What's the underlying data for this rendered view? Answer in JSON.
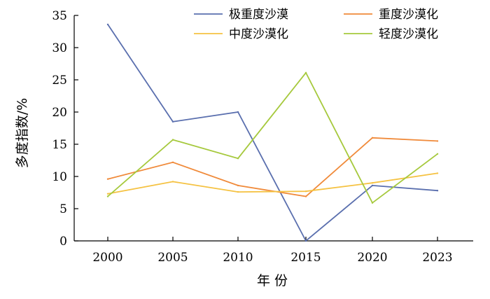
{
  "chart_data": {
    "type": "line",
    "title": "",
    "xlabel": "年 份",
    "ylabel": "多度指数/%",
    "categories": [
      "2000",
      "2005",
      "2010",
      "2015",
      "2020",
      "2023"
    ],
    "x": [
      2000,
      2005,
      2010,
      2015,
      2020,
      2023
    ],
    "ylim": [
      0,
      35
    ],
    "yticks": [
      0,
      5,
      10,
      15,
      20,
      25,
      30,
      35
    ],
    "grid": false,
    "legend_position": "top-right",
    "series": [
      {
        "name": "极重度沙漠",
        "color": "#5a6fae",
        "values": [
          33.6,
          18.5,
          20.0,
          0.0,
          8.6,
          7.8
        ]
      },
      {
        "name": "重度沙漠化",
        "color": "#f08a3a",
        "values": [
          9.6,
          12.2,
          8.6,
          6.9,
          16.0,
          15.5
        ]
      },
      {
        "name": "中度沙漠化",
        "color": "#f5c242",
        "values": [
          7.3,
          9.2,
          7.6,
          7.7,
          9.0,
          10.5
        ]
      },
      {
        "name": "轻度沙漠化",
        "color": "#a6c93d",
        "values": [
          6.9,
          15.7,
          12.8,
          26.1,
          5.9,
          13.5
        ]
      }
    ]
  }
}
